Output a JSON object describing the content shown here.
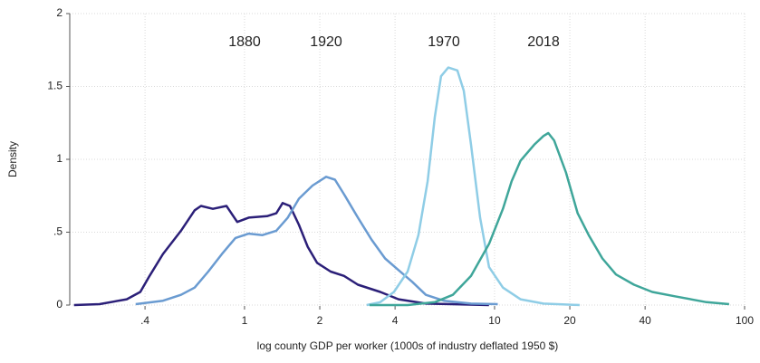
{
  "chart_data": {
    "type": "line",
    "xlabel": "log county GDP per worker (1000s of industry deflated 1950 $)",
    "ylabel": "Density",
    "xscale": "log",
    "grid": true,
    "xlim": [
      0.2,
      100
    ],
    "ylim": [
      0,
      2
    ],
    "xticks": [
      {
        "value": 0.4,
        "label": ".4"
      },
      1,
      2,
      4,
      10,
      20,
      40,
      100
    ],
    "yticks": [
      0,
      {
        "value": 0.5,
        "label": ".5"
      },
      1,
      1.5,
      2
    ],
    "series": [
      {
        "name": "1880",
        "color": "#2b1f78",
        "x": [
          0.208,
          0.263,
          0.338,
          0.383,
          0.417,
          0.472,
          0.557,
          0.632,
          0.67,
          0.747,
          0.847,
          0.935,
          1.04,
          1.23,
          1.34,
          1.42,
          1.52,
          1.65,
          1.79,
          1.95,
          2.21,
          2.5,
          2.84,
          3.49,
          4.13,
          5.31,
          9.5
        ],
        "values": [
          0,
          0.006,
          0.04,
          0.09,
          0.2,
          0.35,
          0.51,
          0.65,
          0.68,
          0.66,
          0.68,
          0.57,
          0.6,
          0.61,
          0.63,
          0.7,
          0.68,
          0.55,
          0.4,
          0.29,
          0.23,
          0.2,
          0.14,
          0.09,
          0.04,
          0.01,
          0
        ]
      },
      {
        "name": "1920",
        "color": "#6a9bd1",
        "x": [
          0.367,
          0.472,
          0.557,
          0.632,
          0.716,
          0.812,
          0.92,
          1.04,
          1.18,
          1.34,
          1.49,
          1.65,
          1.87,
          2.12,
          2.3,
          2.5,
          2.84,
          3.22,
          3.65,
          4.13,
          4.68,
          5.31,
          6.27,
          8.05,
          10.3
        ],
        "values": [
          0.006,
          0.03,
          0.07,
          0.12,
          0.23,
          0.35,
          0.46,
          0.49,
          0.48,
          0.51,
          0.6,
          0.73,
          0.82,
          0.88,
          0.86,
          0.76,
          0.6,
          0.45,
          0.32,
          0.24,
          0.16,
          0.07,
          0.03,
          0.01,
          0.006
        ]
      },
      {
        "name": "1970",
        "color": "#8fcde6",
        "x": [
          3.08,
          3.49,
          3.96,
          4.49,
          4.96,
          5.4,
          5.77,
          6.11,
          6.53,
          7.1,
          7.53,
          8.05,
          8.75,
          9.51,
          10.8,
          12.7,
          15.7,
          21.9
        ],
        "values": [
          0,
          0.02,
          0.09,
          0.23,
          0.48,
          0.85,
          1.29,
          1.57,
          1.63,
          1.61,
          1.47,
          1.1,
          0.6,
          0.26,
          0.12,
          0.04,
          0.01,
          0
        ]
      },
      {
        "name": "2018",
        "color": "#3fa69a",
        "x": [
          3.16,
          4.49,
          5.77,
          6.81,
          8.05,
          9.51,
          10.8,
          11.7,
          12.7,
          14.4,
          15.7,
          16.4,
          17.3,
          19.3,
          21.5,
          23.8,
          27.0,
          30.6,
          36.1,
          42.7,
          52.6,
          70.4,
          86.7
        ],
        "values": [
          0,
          0,
          0.02,
          0.07,
          0.2,
          0.42,
          0.66,
          0.85,
          0.99,
          1.1,
          1.16,
          1.18,
          1.13,
          0.91,
          0.63,
          0.48,
          0.32,
          0.21,
          0.14,
          0.09,
          0.06,
          0.02,
          0.006
        ]
      }
    ]
  }
}
